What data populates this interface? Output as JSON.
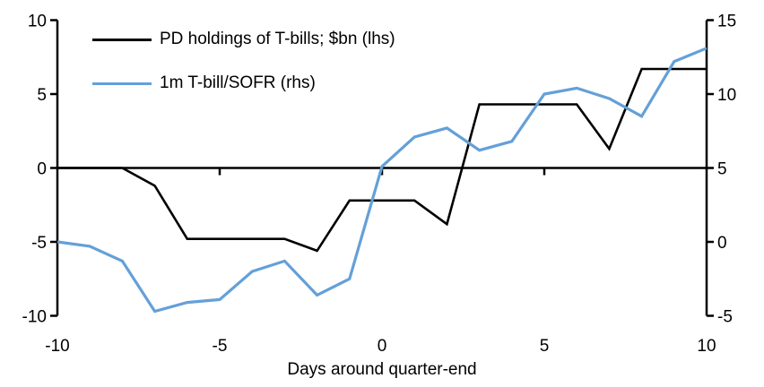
{
  "chart_data": {
    "type": "line",
    "title": "",
    "xlabel": "Days around quarter-end",
    "x": [
      -10,
      -9,
      -8,
      -7,
      -6,
      -5,
      -4,
      -3,
      -2,
      -1,
      0,
      1,
      2,
      3,
      4,
      5,
      6,
      7,
      8,
      9,
      10
    ],
    "x_ticks": [
      -10,
      -5,
      0,
      5,
      10
    ],
    "left_axis": {
      "ticks": [
        10,
        5,
        0,
        -5,
        -10
      ],
      "range": [
        -10,
        10
      ]
    },
    "right_axis": {
      "ticks": [
        15,
        10,
        5,
        0,
        -5
      ],
      "range": [
        -5,
        15
      ]
    },
    "grid": false,
    "legend_position": "top-left",
    "series": [
      {
        "name": "PD holdings of T-bills; $bn (lhs)",
        "axis": "left",
        "color": "#000000",
        "values": [
          0,
          0,
          0,
          -1.2,
          -4.8,
          -4.8,
          -4.8,
          -4.8,
          -5.6,
          -2.2,
          -2.2,
          -2.2,
          -3.8,
          4.3,
          4.3,
          4.3,
          4.3,
          1.3,
          6.7,
          6.7,
          6.7
        ]
      },
      {
        "name": "1m T-bill/SOFR (rhs)",
        "axis": "right",
        "color": "#64A0D8",
        "values": [
          0.0,
          -0.3,
          -1.3,
          -4.7,
          -4.1,
          -3.9,
          -2.0,
          -1.3,
          -3.6,
          -2.5,
          5.1,
          7.1,
          7.7,
          6.2,
          6.8,
          10.0,
          10.4,
          9.7,
          8.5,
          12.2,
          13.1
        ]
      }
    ]
  },
  "colors": {
    "background": "#ffffff",
    "axis": "#000000",
    "black_series": "#000000",
    "blue_series": "#64A0D8"
  }
}
